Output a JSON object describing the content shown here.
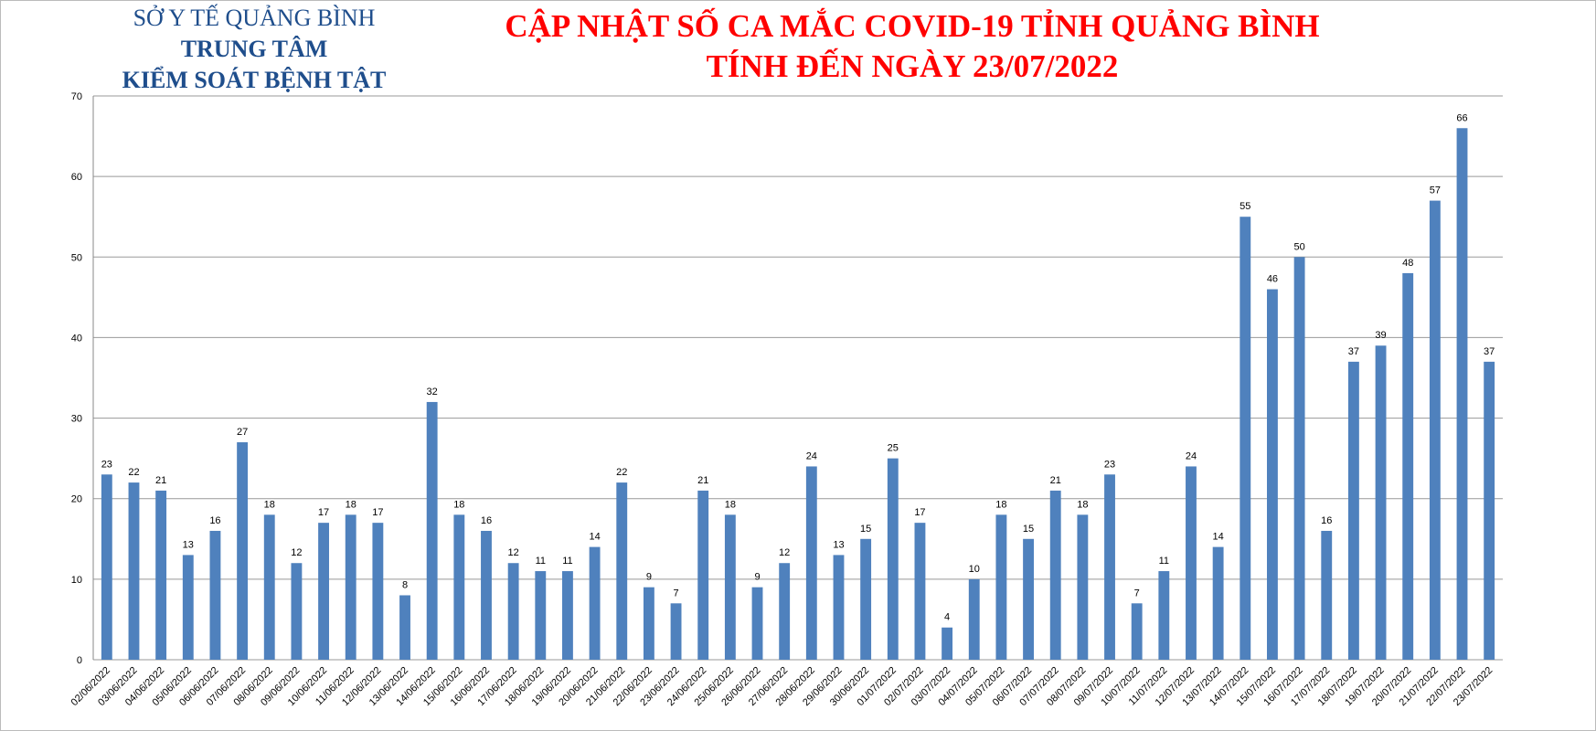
{
  "chart_data": {
    "type": "bar",
    "org": [
      "SỞ Y TẾ QUẢNG BÌNH",
      "TRUNG TÂM",
      "KIỂM SOÁT BỆNH TẬT"
    ],
    "title": "CẬP NHẬT SỐ CA MẮC COVID-19 TỈNH QUẢNG BÌNH",
    "subtitle": "TÍNH ĐẾN NGÀY 23/07/2022",
    "categories": [
      "02/06/2022",
      "03/06/2022",
      "04/06/2022",
      "05/06/2022",
      "06/06/2022",
      "07/06/2022",
      "08/06/2022",
      "09/06/2022",
      "10/06/2022",
      "11/06/2022",
      "12/06/2022",
      "13/06/2022",
      "14/06/2022",
      "15/06/2022",
      "16/06/2022",
      "17/06/2022",
      "18/06/2022",
      "19/06/2022",
      "20/06/2022",
      "21/06/2022",
      "22/06/2022",
      "23/06/2022",
      "24/06/2022",
      "25/06/2022",
      "26/06/2022",
      "27/06/2022",
      "28/06/2022",
      "29/06/2022",
      "30/06/2022",
      "01/07/2022",
      "02/07/2022",
      "03/07/2022",
      "04/07/2022",
      "05/07/2022",
      "06/07/2022",
      "07/07/2022",
      "08/07/2022",
      "09/07/2022",
      "10/07/2022",
      "11/07/2022",
      "12/07/2022",
      "13/07/2022",
      "14/07/2022",
      "15/07/2022",
      "16/07/2022",
      "17/07/2022",
      "18/07/2022",
      "19/07/2022",
      "20/07/2022",
      "21/07/2022",
      "22/07/2022",
      "23/07/2022"
    ],
    "values": [
      23,
      22,
      21,
      13,
      16,
      27,
      18,
      12,
      17,
      18,
      17,
      8,
      32,
      18,
      16,
      12,
      11,
      11,
      14,
      22,
      9,
      7,
      21,
      18,
      9,
      12,
      24,
      13,
      15,
      25,
      17,
      4,
      10,
      18,
      15,
      21,
      18,
      23,
      7,
      11,
      24,
      14,
      55,
      46,
      50,
      16,
      37,
      39,
      48,
      57,
      66,
      37
    ],
    "color": "#4f81bd",
    "ylim": [
      0,
      70
    ],
    "yticks": [
      0,
      10,
      20,
      30,
      40,
      50,
      60,
      70
    ],
    "grid": true
  }
}
